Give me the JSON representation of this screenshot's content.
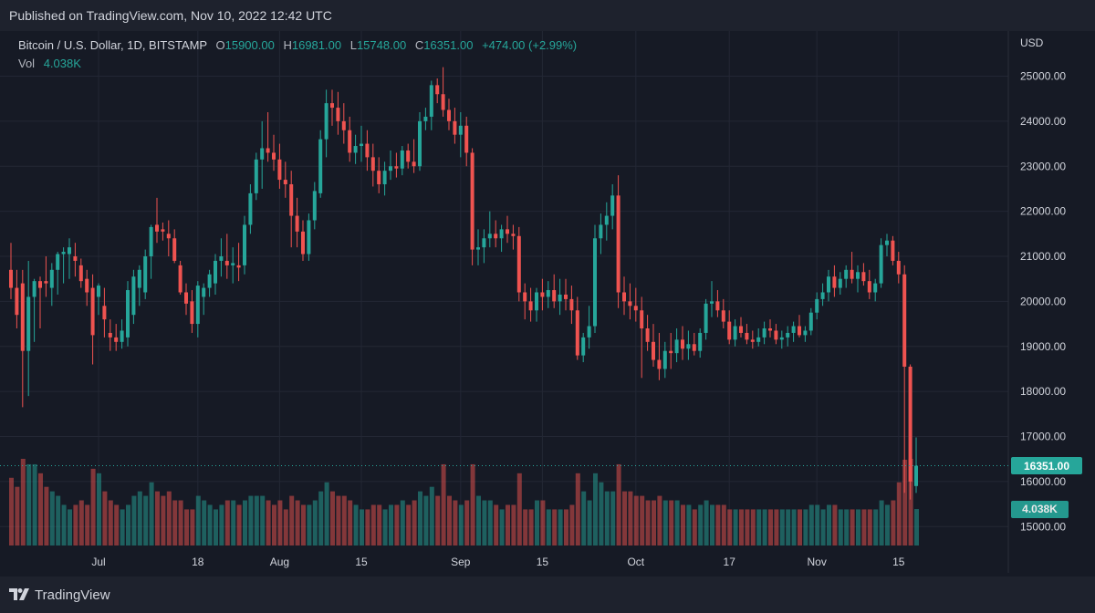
{
  "header": {
    "published": "Published on TradingView.com, Nov 10, 2022 12:42 UTC"
  },
  "legend": {
    "symbol": "Bitcoin / U.S. Dollar, 1D, BITSTAMP",
    "o_label": "O",
    "o": "15900.00",
    "h_label": "H",
    "h": "16981.00",
    "l_label": "L",
    "l": "15748.00",
    "c_label": "C",
    "c": "16351.00",
    "change": "+474.00 (+2.99%)",
    "vol_label": "Vol",
    "vol": "4.038K"
  },
  "price_axis": {
    "unit": "USD",
    "last_price_badge": "16351.00",
    "volume_badge": "4.038K"
  },
  "footer": {
    "brand": "TradingView"
  },
  "colors": {
    "up": "#26a69a",
    "down": "#ef5350",
    "background": "#161a25",
    "grid": "#232734",
    "price_line": "#26a69a"
  },
  "icons": {
    "logo": "tradingview-logo-icon"
  },
  "chart_data": {
    "type": "candlestick",
    "title": "Bitcoin / U.S. Dollar, 1D, BITSTAMP",
    "ylim": [
      14600,
      25800
    ],
    "y_ticks": [
      15000,
      16000,
      17000,
      18000,
      19000,
      20000,
      21000,
      22000,
      23000,
      24000,
      25000
    ],
    "y_tick_labels": [
      "15000.00",
      "16000.00",
      "17000.00",
      "18000.00",
      "19000.00",
      "20000.00",
      "21000.00",
      "22000.00",
      "23000.00",
      "24000.00",
      "25000.00"
    ],
    "x_ticks": [
      {
        "index": 15,
        "label": "Jul"
      },
      {
        "index": 32,
        "label": "18"
      },
      {
        "index": 46,
        "label": "Aug"
      },
      {
        "index": 60,
        "label": "15"
      },
      {
        "index": 77,
        "label": "Sep"
      },
      {
        "index": 91,
        "label": "15"
      },
      {
        "index": 107,
        "label": "Oct"
      },
      {
        "index": 123,
        "label": "17"
      },
      {
        "index": 138,
        "label": "Nov"
      },
      {
        "index": 152,
        "label": "15"
      }
    ],
    "last_price": 16351,
    "up_color": "#26a69a",
    "down_color": "#ef5350",
    "vol_max": 9.6,
    "candles": [
      [
        20700,
        21300,
        20050,
        20300,
        7.5
      ],
      [
        20300,
        20700,
        19400,
        19700,
        6.5
      ],
      [
        20400,
        20700,
        17650,
        18900,
        9.6
      ],
      [
        18900,
        20900,
        17900,
        20100,
        9
      ],
      [
        20100,
        20500,
        19100,
        20450,
        9
      ],
      [
        20450,
        20550,
        19400,
        20300,
        8
      ],
      [
        20450,
        21000,
        20100,
        20400,
        6.5
      ],
      [
        20300,
        20850,
        19900,
        20700,
        6
      ],
      [
        20700,
        21100,
        20150,
        21050,
        5.5
      ],
      [
        21050,
        21200,
        20400,
        21100,
        4.5
      ],
      [
        21050,
        21400,
        20500,
        21200,
        4
      ],
      [
        21000,
        21300,
        20550,
        20900,
        4.5
      ],
      [
        20800,
        20950,
        20300,
        20450,
        5
      ],
      [
        20500,
        20700,
        19900,
        20200,
        4.5
      ],
      [
        20300,
        20600,
        18600,
        19250,
        8.5
      ],
      [
        20100,
        20400,
        19700,
        20350,
        8
      ],
      [
        19900,
        20300,
        19200,
        19600,
        6
      ],
      [
        19300,
        19600,
        18900,
        19200,
        5
      ],
      [
        19200,
        19500,
        18900,
        19100,
        4.5
      ],
      [
        19100,
        19600,
        18950,
        19350,
        4
      ],
      [
        19200,
        20450,
        19000,
        20250,
        4.5
      ],
      [
        19700,
        20700,
        19500,
        20550,
        5.5
      ],
      [
        20300,
        20800,
        19900,
        20700,
        6
      ],
      [
        20200,
        21150,
        20050,
        21000,
        5.5
      ],
      [
        21000,
        21700,
        20500,
        21650,
        7
      ],
      [
        21700,
        22300,
        21300,
        21550,
        6
      ],
      [
        21600,
        21750,
        21350,
        21550,
        5.5
      ],
      [
        21500,
        21800,
        21000,
        21400,
        6
      ],
      [
        21400,
        21600,
        20850,
        20900,
        5
      ],
      [
        20800,
        20900,
        20150,
        20200,
        5
      ],
      [
        20200,
        20400,
        19700,
        19950,
        4
      ],
      [
        20000,
        20250,
        19300,
        19500,
        4
      ],
      [
        19500,
        20450,
        19200,
        20350,
        5.5
      ],
      [
        20100,
        20400,
        19700,
        20300,
        5
      ],
      [
        20300,
        20700,
        20100,
        20600,
        4.5
      ],
      [
        20400,
        21050,
        20150,
        20900,
        4
      ],
      [
        20900,
        21400,
        20550,
        21000,
        4.5
      ],
      [
        20900,
        21500,
        20500,
        20800,
        5
      ],
      [
        20800,
        21200,
        20400,
        20850,
        5
      ],
      [
        20800,
        21300,
        20450,
        20750,
        4.5
      ],
      [
        20800,
        21900,
        20600,
        21700,
        5
      ],
      [
        21700,
        22600,
        21500,
        22400,
        5.5
      ],
      [
        22400,
        23300,
        22250,
        23150,
        5.5
      ],
      [
        23150,
        24000,
        22500,
        23400,
        5.5
      ],
      [
        23400,
        24200,
        23100,
        23300,
        5
      ],
      [
        23300,
        23700,
        22900,
        23150,
        4.5
      ],
      [
        23150,
        23500,
        22500,
        22700,
        5
      ],
      [
        22700,
        23100,
        22300,
        22600,
        4
      ],
      [
        22600,
        22900,
        21200,
        21900,
        5.5
      ],
      [
        21900,
        22300,
        21200,
        21550,
        5
      ],
      [
        21550,
        21800,
        20900,
        21050,
        4.5
      ],
      [
        21050,
        21950,
        20900,
        21800,
        4.5
      ],
      [
        21800,
        22650,
        21600,
        22450,
        5
      ],
      [
        22400,
        23800,
        22300,
        23600,
        6
      ],
      [
        23600,
        24700,
        23200,
        24400,
        7
      ],
      [
        24400,
        24700,
        23900,
        24300,
        6
      ],
      [
        24300,
        24650,
        23700,
        24000,
        5.5
      ],
      [
        24000,
        24400,
        23500,
        23800,
        5.5
      ],
      [
        23800,
        24100,
        23100,
        23300,
        5
      ],
      [
        23300,
        23700,
        23050,
        23450,
        4.5
      ],
      [
        23450,
        23900,
        23100,
        23500,
        4
      ],
      [
        23500,
        23800,
        22900,
        23200,
        4
      ],
      [
        23200,
        23500,
        22550,
        22900,
        4.5
      ],
      [
        22900,
        23200,
        22400,
        22600,
        4.5
      ],
      [
        22600,
        23100,
        22350,
        22900,
        4
      ],
      [
        22900,
        23350,
        22700,
        23000,
        4.5
      ],
      [
        23000,
        23300,
        22750,
        22950,
        4.5
      ],
      [
        22950,
        23450,
        22800,
        23350,
        5
      ],
      [
        23350,
        23500,
        22950,
        23100,
        4.5
      ],
      [
        23100,
        23600,
        22850,
        23000,
        5
      ],
      [
        23000,
        24200,
        22900,
        24000,
        6
      ],
      [
        24000,
        24300,
        23800,
        24100,
        5.5
      ],
      [
        24100,
        24900,
        23800,
        24800,
        6.5
      ],
      [
        24800,
        24950,
        24400,
        24600,
        5.5
      ],
      [
        24600,
        25200,
        24100,
        24250,
        9
      ],
      [
        24250,
        24500,
        23800,
        24000,
        5.5
      ],
      [
        24000,
        24300,
        23500,
        23700,
        5
      ],
      [
        23700,
        24200,
        23200,
        23900,
        4.5
      ],
      [
        23900,
        24100,
        23000,
        23300,
        5
      ],
      [
        23300,
        23400,
        20800,
        21150,
        9
      ],
      [
        21150,
        21600,
        20800,
        21200,
        5.5
      ],
      [
        21200,
        21600,
        20850,
        21400,
        5
      ],
      [
        21400,
        22000,
        21200,
        21500,
        5
      ],
      [
        21500,
        21800,
        21200,
        21400,
        4.5
      ],
      [
        21400,
        21700,
        21100,
        21600,
        4
      ],
      [
        21600,
        21900,
        21300,
        21500,
        4.5
      ],
      [
        21500,
        21700,
        21150,
        21450,
        4.5
      ],
      [
        21450,
        21650,
        20000,
        20200,
        8
      ],
      [
        20200,
        20400,
        19600,
        20000,
        4
      ],
      [
        20000,
        20300,
        19550,
        19800,
        4
      ],
      [
        19800,
        20300,
        19550,
        20200,
        5
      ],
      [
        20200,
        20500,
        19800,
        20100,
        5
      ],
      [
        20100,
        20450,
        19850,
        20250,
        4
      ],
      [
        20250,
        20600,
        19850,
        20000,
        4
      ],
      [
        20000,
        20500,
        19700,
        20150,
        4
      ],
      [
        20150,
        20500,
        19800,
        20050,
        4
      ],
      [
        20050,
        20350,
        19500,
        19800,
        4.5
      ],
      [
        19800,
        20100,
        18700,
        18800,
        8
      ],
      [
        18800,
        19300,
        18650,
        19200,
        6
      ],
      [
        19200,
        19900,
        18950,
        19450,
        5
      ],
      [
        19450,
        21700,
        19300,
        21400,
        8
      ],
      [
        21400,
        21950,
        21050,
        21700,
        7
      ],
      [
        21700,
        22200,
        21350,
        21900,
        6
      ],
      [
        21900,
        22600,
        21600,
        22350,
        6
      ],
      [
        22350,
        22800,
        19850,
        20200,
        9
      ],
      [
        20200,
        20550,
        19700,
        20000,
        6
      ],
      [
        20000,
        20400,
        19600,
        19900,
        6
      ],
      [
        19900,
        20300,
        19550,
        19800,
        5.5
      ],
      [
        19800,
        20100,
        18300,
        19400,
        5.5
      ],
      [
        19400,
        19700,
        18900,
        19100,
        5
      ],
      [
        19100,
        19500,
        18550,
        18700,
        5
      ],
      [
        18700,
        19300,
        18250,
        18500,
        5.5
      ],
      [
        18500,
        19100,
        18300,
        18900,
        5
      ],
      [
        18900,
        19300,
        18500,
        18850,
        5
      ],
      [
        18850,
        19400,
        18650,
        19150,
        5
      ],
      [
        19150,
        19450,
        18700,
        18950,
        4.5
      ],
      [
        18950,
        19350,
        18700,
        19050,
        4.5
      ],
      [
        19050,
        19300,
        18800,
        18900,
        4
      ],
      [
        18900,
        19400,
        18750,
        19300,
        4.5
      ],
      [
        19300,
        20050,
        19150,
        19950,
        5
      ],
      [
        19950,
        20450,
        19650,
        20000,
        4.5
      ],
      [
        20000,
        20250,
        19650,
        19800,
        4.5
      ],
      [
        19800,
        20050,
        19400,
        19550,
        4.5
      ],
      [
        19550,
        19800,
        19050,
        19150,
        4
      ],
      [
        19150,
        19600,
        19000,
        19450,
        4
      ],
      [
        19450,
        19650,
        19200,
        19300,
        4
      ],
      [
        19300,
        19500,
        19050,
        19150,
        4
      ],
      [
        19150,
        19350,
        18950,
        19100,
        4
      ],
      [
        19100,
        19400,
        19000,
        19200,
        4
      ],
      [
        19200,
        19550,
        19050,
        19400,
        4
      ],
      [
        19400,
        19600,
        19200,
        19350,
        4
      ],
      [
        19350,
        19500,
        19050,
        19150,
        4
      ],
      [
        19150,
        19350,
        18950,
        19200,
        4
      ],
      [
        19200,
        19450,
        19000,
        19300,
        4
      ],
      [
        19300,
        19550,
        19100,
        19450,
        4
      ],
      [
        19450,
        19700,
        19200,
        19250,
        4
      ],
      [
        19250,
        19450,
        19100,
        19350,
        4
      ],
      [
        19350,
        19850,
        19250,
        19750,
        4.5
      ],
      [
        19750,
        20200,
        19600,
        20050,
        4.5
      ],
      [
        20050,
        20400,
        19900,
        20200,
        4
      ],
      [
        20200,
        20700,
        20000,
        20550,
        4.5
      ],
      [
        20550,
        20800,
        20100,
        20300,
        4.5
      ],
      [
        20300,
        20650,
        20150,
        20500,
        4
      ],
      [
        20500,
        20800,
        20300,
        20700,
        4
      ],
      [
        20700,
        21100,
        20400,
        20500,
        4
      ],
      [
        20500,
        20800,
        20200,
        20650,
        4
      ],
      [
        20650,
        20850,
        20350,
        20450,
        4
      ],
      [
        20450,
        20700,
        20050,
        20200,
        4
      ],
      [
        20200,
        20500,
        20000,
        20400,
        4
      ],
      [
        20400,
        21400,
        20300,
        21250,
        5
      ],
      [
        21250,
        21500,
        21000,
        21350,
        4.5
      ],
      [
        21350,
        21450,
        20800,
        20900,
        5
      ],
      [
        20900,
        21100,
        20400,
        20600,
        7
      ],
      [
        20600,
        20800,
        15750,
        18550,
        9.5
      ],
      [
        18550,
        18600,
        15600,
        16000,
        9.6
      ],
      [
        15900,
        16981,
        15748,
        16351,
        4.038
      ]
    ]
  }
}
